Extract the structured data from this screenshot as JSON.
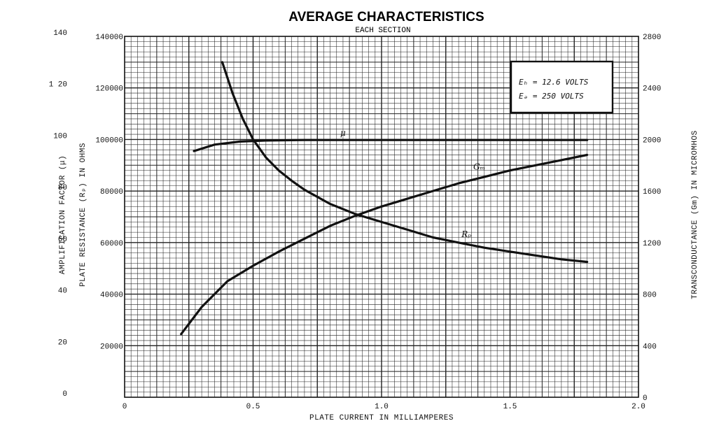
{
  "chart_data": {
    "type": "line",
    "title": "AVERAGE CHARACTERISTICS",
    "subtitle": "EACH SECTION",
    "xlabel": "PLATE CURRENT IN MILLIAMPERES",
    "xlim": [
      0,
      2.0
    ],
    "x_ticks": [
      "0",
      "0.5",
      "1.0",
      "1.5",
      "2.0"
    ],
    "y_axes": {
      "mu": {
        "label": "AMPLIFICATION FACTOR (μ)",
        "lim": [
          0,
          140
        ],
        "ticks": [
          "0",
          "20",
          "40",
          "60",
          "80",
          "1 20",
          "100",
          "140"
        ]
      },
      "rp": {
        "label": "PLATE RESISTANCE (Rₚ) IN OHMS",
        "lim": [
          0,
          140000
        ],
        "ticks": [
          "20000",
          "40000",
          "60000",
          "80000",
          "100000",
          "120000",
          "140000"
        ]
      },
      "gm": {
        "label": "TRANSCONDUCTANCE (Gm) IN MICROMHOS",
        "lim": [
          0,
          2800
        ],
        "ticks": [
          "0",
          "400",
          "800",
          "1200",
          "1600",
          "2000",
          "2400",
          "2800"
        ]
      }
    },
    "grid": true,
    "conditions": [
      "Eₕ = 12.6 VOLTS",
      "Eₔ = 250 VOLTS"
    ],
    "series": [
      {
        "name": "μ",
        "axis": "mu",
        "x": [
          0.27,
          0.35,
          0.45,
          0.55,
          0.7,
          1.0,
          1.4,
          1.8
        ],
        "values": [
          95.5,
          98,
          99.2,
          99.6,
          99.8,
          99.8,
          99.8,
          99.8
        ]
      },
      {
        "name": "Rₚ",
        "axis": "rp",
        "x": [
          0.38,
          0.42,
          0.46,
          0.5,
          0.55,
          0.6,
          0.65,
          0.7,
          0.8,
          0.9,
          1.0,
          1.1,
          1.2,
          1.3,
          1.4,
          1.5,
          1.6,
          1.7,
          1.8
        ],
        "values": [
          130000,
          118000,
          108000,
          100000,
          93000,
          88000,
          84000,
          80500,
          75000,
          71000,
          68000,
          65000,
          62000,
          60000,
          58000,
          56500,
          55000,
          53500,
          52500
        ]
      },
      {
        "name": "Gₘ",
        "axis": "gm",
        "x": [
          0.22,
          0.3,
          0.4,
          0.5,
          0.6,
          0.7,
          0.8,
          0.9,
          1.0,
          1.1,
          1.2,
          1.3,
          1.4,
          1.5,
          1.6,
          1.7,
          1.8
        ],
        "values": [
          490,
          700,
          900,
          1020,
          1130,
          1230,
          1330,
          1410,
          1480,
          1540,
          1600,
          1660,
          1710,
          1760,
          1800,
          1840,
          1880
        ]
      }
    ]
  }
}
